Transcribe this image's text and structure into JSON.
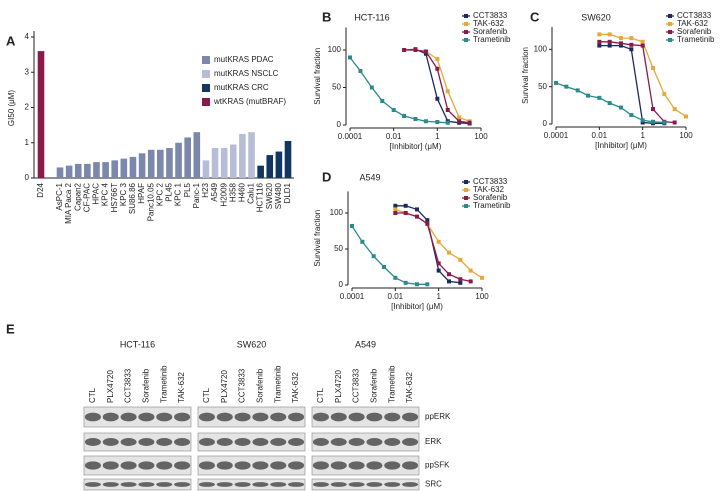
{
  "panel_labels": [
    "A",
    "B",
    "C",
    "D",
    "E"
  ],
  "chart_data": [
    {
      "type": "bar",
      "ylabel": "GI50 (μM)",
      "categories": [
        "D24",
        "AsPC-1",
        "MIA Paca 2",
        "Capan2",
        "CF-PAC",
        "HPAC",
        "KPC 4",
        "HS766T",
        "KPC 3",
        "SU86.86",
        "HPAF",
        "Panc10.05",
        "KPC 2",
        "PL45",
        "KPC 1",
        "PL5",
        "Panc-1",
        "H23",
        "A549",
        "H2009",
        "H358",
        "H460",
        "Calu1",
        "HCT116",
        "SW620",
        "SW480",
        "DLD1"
      ],
      "series": [
        {
          "name": "mutKRAS PDAC",
          "color": "#7b87ab",
          "values": [
            null,
            0.3,
            0.35,
            0.4,
            0.4,
            0.45,
            0.45,
            0.5,
            0.55,
            0.6,
            0.7,
            0.8,
            0.8,
            0.85,
            1.0,
            1.15,
            1.3,
            null,
            null,
            null,
            null,
            null,
            null,
            null,
            null,
            null,
            null
          ]
        },
        {
          "name": "mutKRAS NSCLC",
          "color": "#b8bdd7",
          "values": [
            null,
            null,
            null,
            null,
            null,
            null,
            null,
            null,
            null,
            null,
            null,
            null,
            null,
            null,
            null,
            null,
            null,
            0.5,
            0.85,
            0.85,
            0.95,
            1.25,
            1.3,
            null,
            null,
            null,
            null
          ]
        },
        {
          "name": "mutKRAS CRC",
          "color": "#11365f",
          "values": [
            null,
            null,
            null,
            null,
            null,
            null,
            null,
            null,
            null,
            null,
            null,
            null,
            null,
            null,
            null,
            null,
            null,
            null,
            null,
            null,
            null,
            null,
            null,
            0.35,
            0.65,
            0.75,
            1.05
          ]
        },
        {
          "name": "wtKRAS (mutBRAF)",
          "color": "#8b1a4b",
          "values": [
            3.6,
            null,
            null,
            null,
            null,
            null,
            null,
            null,
            null,
            null,
            null,
            null,
            null,
            null,
            null,
            null,
            null,
            null,
            null,
            null,
            null,
            null,
            null,
            null,
            null,
            null,
            null
          ]
        }
      ],
      "ylim": [
        0,
        4
      ],
      "yticks": [
        0,
        1,
        2,
        3,
        4
      ]
    },
    {
      "type": "scatter",
      "title": "HCT-116",
      "xlabel": "[Inhibitor] (μM)",
      "ylabel": "Survival fraction",
      "xscale": "log",
      "xlim": [
        0.0001,
        100
      ],
      "xticks": [
        0.0001,
        0.01,
        1,
        100
      ],
      "ylim": [
        0,
        130
      ],
      "yticks": [
        0,
        50,
        100
      ],
      "series": [
        {
          "name": "CCT3833",
          "color": "#1b2a5c",
          "x": [
            0.03,
            0.1,
            0.3,
            1,
            3,
            10,
            30
          ],
          "values": [
            100,
            101,
            95,
            35,
            5,
            3,
            2
          ]
        },
        {
          "name": "TAK-632",
          "color": "#e5a83b",
          "x": [
            0.03,
            0.1,
            0.3,
            1,
            3,
            10,
            30
          ],
          "values": [
            100,
            100,
            98,
            88,
            45,
            10,
            5
          ]
        },
        {
          "name": "Sorafenib",
          "color": "#8b1a4b",
          "x": [
            0.03,
            0.1,
            0.3,
            1,
            3,
            10,
            30
          ],
          "values": [
            100,
            100,
            98,
            75,
            20,
            5,
            3
          ]
        },
        {
          "name": "Trametinib",
          "color": "#2a8a8c",
          "x": [
            0.0001,
            0.0003,
            0.001,
            0.003,
            0.01,
            0.03,
            0.1,
            0.3,
            1,
            3
          ],
          "values": [
            90,
            72,
            50,
            32,
            20,
            12,
            8,
            5,
            4,
            3
          ]
        }
      ]
    },
    {
      "type": "scatter",
      "title": "SW620",
      "xlabel": "[Inhibitor] (μM)",
      "ylabel": "Survival fraction",
      "xscale": "log",
      "xlim": [
        0.0001,
        100
      ],
      "xticks": [
        0.0001,
        0.01,
        1,
        100
      ],
      "ylim": [
        0,
        130
      ],
      "yticks": [
        0,
        50,
        100
      ],
      "series": [
        {
          "name": "CCT3833",
          "color": "#1b2a5c",
          "x": [
            0.01,
            0.03,
            0.1,
            0.3,
            1,
            3,
            10
          ],
          "values": [
            105,
            105,
            105,
            100,
            2,
            1,
            1
          ]
        },
        {
          "name": "TAK-632",
          "color": "#e5a83b",
          "x": [
            0.01,
            0.03,
            0.1,
            0.3,
            1,
            3,
            10,
            30,
            100
          ],
          "values": [
            120,
            120,
            115,
            115,
            110,
            75,
            40,
            20,
            10
          ]
        },
        {
          "name": "Sorafenib",
          "color": "#8b1a4b",
          "x": [
            0.01,
            0.03,
            0.1,
            0.3,
            1,
            3,
            10,
            30
          ],
          "values": [
            110,
            110,
            108,
            106,
            105,
            20,
            3,
            2
          ]
        },
        {
          "name": "Trametinib",
          "color": "#2a8a8c",
          "x": [
            0.0001,
            0.0003,
            0.001,
            0.003,
            0.01,
            0.03,
            0.1,
            0.3,
            1,
            3,
            10
          ],
          "values": [
            55,
            50,
            45,
            38,
            35,
            28,
            22,
            12,
            5,
            3,
            2
          ]
        }
      ]
    },
    {
      "type": "scatter",
      "title": "A549",
      "xlabel": "[Inhibitor] (μM)",
      "ylabel": "Survival fraction",
      "xscale": "log",
      "xlim": [
        0.0001,
        100
      ],
      "xticks": [
        0.0001,
        0.01,
        1,
        100
      ],
      "ylim": [
        0,
        130
      ],
      "yticks": [
        0,
        50,
        100
      ],
      "series": [
        {
          "name": "CCT3833",
          "color": "#1b2a5c",
          "x": [
            0.01,
            0.03,
            0.1,
            0.3,
            1,
            3,
            10
          ],
          "values": [
            110,
            110,
            105,
            90,
            20,
            5,
            3
          ]
        },
        {
          "name": "TAK-632",
          "color": "#e5a83b",
          "x": [
            0.01,
            0.03,
            0.1,
            0.3,
            1,
            3,
            10,
            30,
            100
          ],
          "values": [
            105,
            100,
            95,
            85,
            60,
            45,
            35,
            20,
            10
          ]
        },
        {
          "name": "Sorafenib",
          "color": "#8b1a4b",
          "x": [
            0.01,
            0.03,
            0.1,
            0.3,
            1,
            3,
            10,
            30
          ],
          "values": [
            100,
            100,
            95,
            85,
            30,
            15,
            8,
            5
          ]
        },
        {
          "name": "Trametinib",
          "color": "#2a8a8c",
          "x": [
            0.0001,
            0.0003,
            0.001,
            0.003,
            0.01,
            0.03,
            0.1,
            0.3
          ],
          "values": [
            82,
            60,
            40,
            25,
            10,
            3,
            1,
            1
          ]
        }
      ]
    }
  ],
  "blot": {
    "groups": [
      "HCT-116",
      "SW620",
      "A549"
    ],
    "lanes": [
      "CTL",
      "PLX4720",
      "CCT3833",
      "Sorafenib",
      "Trametinib",
      "TAK-632"
    ],
    "rows": [
      "ppERK",
      "ERK",
      "ppSFK",
      "SRC"
    ]
  }
}
